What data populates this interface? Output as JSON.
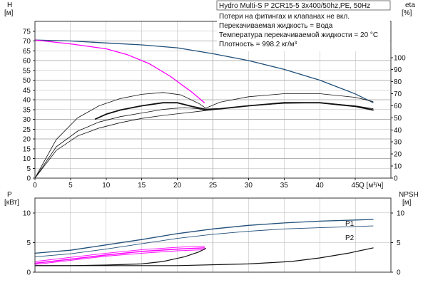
{
  "info_box": {
    "title": "Hydro Multi-S P 2CR15-5 3x400/50hz,PE, 50Hz",
    "lines": [
      "Потери на фитингах и клапанах не вкл.",
      "Перекачиваемая жидкость = Вода",
      "Температура перекачиваемой жидкости = 20 °C",
      "Плотность = 998.2 кг/м³"
    ]
  },
  "chart_data": [
    {
      "type": "line",
      "title": "",
      "xlabel": "Q [м³/ч]",
      "ylabel": "H [м]",
      "y2label": "eta [%]",
      "xlim": [
        0,
        50
      ],
      "ylim": [
        0,
        80
      ],
      "y2lim": [
        0,
        130
      ],
      "xticks": [
        0,
        5,
        10,
        15,
        20,
        25,
        30,
        35,
        40,
        45
      ],
      "yticks": [
        0,
        5,
        10,
        15,
        20,
        25,
        30,
        35,
        40,
        45,
        50,
        55,
        60,
        65,
        70,
        75
      ],
      "y2ticks": [
        0,
        10,
        20,
        30,
        40,
        50,
        60,
        70,
        80,
        90,
        100
      ],
      "series": [
        {
          "color": "#1f4e79",
          "width": 1.3,
          "axis": "y",
          "points": [
            [
              0,
              70.5
            ],
            [
              5,
              70
            ],
            [
              10,
              69
            ],
            [
              15,
              68
            ],
            [
              20,
              66.5
            ],
            [
              25,
              63.5
            ],
            [
              30,
              60
            ],
            [
              35,
              55.5
            ],
            [
              40,
              50
            ],
            [
              45,
              43
            ],
            [
              47.5,
              38.5
            ]
          ]
        },
        {
          "color": "#ff00ff",
          "width": 1.3,
          "axis": "y",
          "points": [
            [
              0,
              70.5
            ],
            [
              5,
              68.5
            ],
            [
              10,
              66
            ],
            [
              13,
              63
            ],
            [
              16,
              58.5
            ],
            [
              19,
              52
            ],
            [
              22,
              44
            ],
            [
              23.8,
              38.5
            ]
          ]
        },
        {
          "color": "#111111",
          "width": 0.8,
          "axis": "y2",
          "points": [
            [
              0,
              0
            ],
            [
              3,
              32
            ],
            [
              6,
              50
            ],
            [
              9,
              60
            ],
            [
              12,
              66
            ],
            [
              15,
              69.5
            ],
            [
              18,
              71
            ],
            [
              20.5,
              69
            ],
            [
              23,
              62
            ],
            [
              24,
              58
            ],
            [
              26,
              63
            ],
            [
              30,
              67.5
            ],
            [
              35,
              70
            ],
            [
              40,
              70
            ],
            [
              45,
              67
            ],
            [
              47.5,
              63.5
            ]
          ]
        },
        {
          "color": "#111111",
          "width": 0.8,
          "axis": "y2",
          "points": [
            [
              0,
              0
            ],
            [
              3,
              23
            ],
            [
              6,
              35
            ],
            [
              9,
              41.5
            ],
            [
              12,
              46
            ],
            [
              15,
              49.5
            ],
            [
              18,
              52
            ],
            [
              21,
              54
            ],
            [
              24,
              56
            ],
            [
              27,
              58
            ],
            [
              30,
              60
            ],
            [
              35,
              62
            ],
            [
              40,
              62.5
            ],
            [
              45,
              60
            ],
            [
              47.5,
              57.5
            ]
          ]
        },
        {
          "color": "#111111",
          "width": 0.8,
          "axis": "y2",
          "points": [
            [
              0,
              0
            ],
            [
              3,
              26
            ],
            [
              6,
              39
            ],
            [
              9,
              46.5
            ],
            [
              12,
              51
            ],
            [
              15,
              54
            ],
            [
              18,
              57
            ],
            [
              21,
              58.5
            ],
            [
              23,
              57.5
            ],
            [
              24,
              56
            ]
          ]
        },
        {
          "color": "#111111",
          "width": 1.8,
          "axis": "y2",
          "points": [
            [
              8.5,
              49
            ],
            [
              10,
              53
            ],
            [
              12,
              56.5
            ],
            [
              15,
              60
            ],
            [
              18,
              62.5
            ],
            [
              20,
              62.5
            ],
            [
              22,
              59.5
            ],
            [
              24,
              57
            ],
            [
              26,
              57.5
            ],
            [
              30,
              60
            ],
            [
              35,
              62.5
            ],
            [
              40,
              62.5
            ],
            [
              45,
              59.5
            ],
            [
              47.5,
              56.5
            ]
          ]
        }
      ]
    },
    {
      "type": "line",
      "title": "",
      "xlabel": "",
      "ylabel": "P [кВт]",
      "y2label": "NPSH [м]",
      "xlim": [
        0,
        50
      ],
      "ylim": [
        0,
        12.5
      ],
      "yticks": [
        0,
        5,
        10
      ],
      "y2ticks": [
        0,
        5,
        10
      ],
      "series_labels": [
        "P1",
        "P2"
      ],
      "series": [
        {
          "name": "P1",
          "color": "#1f4e79",
          "width": 1.3,
          "points": [
            [
              0,
              3.2
            ],
            [
              5,
              3.7
            ],
            [
              10,
              4.6
            ],
            [
              15,
              5.5
            ],
            [
              20,
              6.5
            ],
            [
              25,
              7.3
            ],
            [
              30,
              7.9
            ],
            [
              35,
              8.3
            ],
            [
              40,
              8.6
            ],
            [
              45,
              8.8
            ],
            [
              47.5,
              8.9
            ]
          ]
        },
        {
          "name": "P2",
          "color": "#1f4e79",
          "width": 0.9,
          "points": [
            [
              0,
              2.6
            ],
            [
              5,
              3.1
            ],
            [
              10,
              3.9
            ],
            [
              15,
              4.8
            ],
            [
              20,
              5.7
            ],
            [
              25,
              6.4
            ],
            [
              30,
              6.9
            ],
            [
              35,
              7.3
            ],
            [
              40,
              7.5
            ],
            [
              45,
              7.7
            ],
            [
              47.5,
              7.8
            ]
          ]
        },
        {
          "color": "#ff00ff",
          "width": 0.9,
          "points": [
            [
              0,
              1.8
            ],
            [
              5,
              2.5
            ],
            [
              10,
              3.2
            ],
            [
              15,
              3.8
            ],
            [
              20,
              4.2
            ],
            [
              23.8,
              4.4
            ]
          ]
        },
        {
          "color": "#ff00ff",
          "width": 0.9,
          "points": [
            [
              0,
              1.3
            ],
            [
              5,
              2.0
            ],
            [
              10,
              2.7
            ],
            [
              15,
              3.2
            ],
            [
              20,
              3.6
            ],
            [
              23.8,
              3.8
            ]
          ]
        },
        {
          "color": "#ff00ff",
          "width": 1.5,
          "points": [
            [
              0,
              1.5
            ],
            [
              5,
              2.2
            ],
            [
              10,
              2.9
            ],
            [
              15,
              3.5
            ],
            [
              20,
              3.9
            ],
            [
              23.8,
              4.1
            ]
          ]
        },
        {
          "color": "#111111",
          "width": 1.2,
          "points": [
            [
              0,
              1.1
            ],
            [
              5,
              1.1
            ],
            [
              10,
              1.2
            ],
            [
              15,
              1.4
            ],
            [
              18,
              1.8
            ],
            [
              21,
              2.6
            ],
            [
              23,
              3.4
            ],
            [
              24,
              4.0
            ]
          ]
        },
        {
          "color": "#111111",
          "width": 1.2,
          "points": [
            [
              0,
              1.1
            ],
            [
              20,
              1.1
            ],
            [
              30,
              1.4
            ],
            [
              36,
              1.8
            ],
            [
              40,
              2.4
            ],
            [
              44,
              3.2
            ],
            [
              47.5,
              4.1
            ]
          ]
        }
      ]
    }
  ]
}
